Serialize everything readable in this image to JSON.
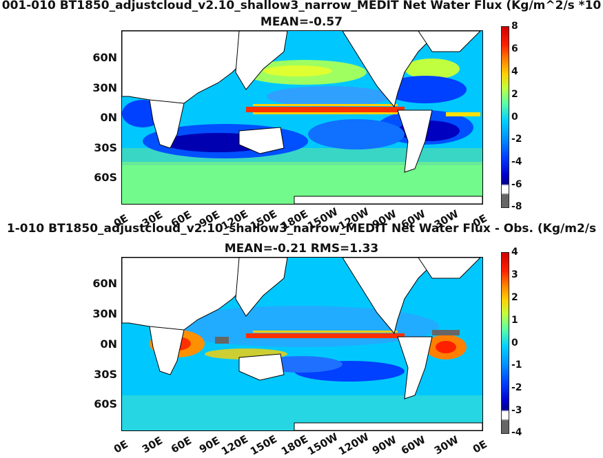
{
  "panel1": {
    "title": "001-010 BT1850_adjustcloud_v2.10_shallow3_narrow_MEDIT  Net Water Flux (Kg/m^2/s *10",
    "subtitle": "MEAN=-0.57",
    "colorbar_ticks": [
      "8",
      "6",
      "4",
      "2",
      "0",
      "-2",
      "-4",
      "-6",
      "-8"
    ]
  },
  "panel2": {
    "title": "1-010 BT1850_adjustcloud_v2.10_shallow3_narrow_MEDIT  Net Water Flux - Obs. (Kg/m2/s",
    "subtitle": "MEAN=-0.21 RMS=1.33",
    "colorbar_ticks": [
      "4",
      "3",
      "2",
      "1",
      "0",
      "-1",
      "-2",
      "-3",
      "-4"
    ]
  },
  "axes": {
    "lat_labels": [
      "60N",
      "30N",
      "0N",
      "30S",
      "60S"
    ],
    "lon_labels": [
      "0E",
      "30E",
      "60E",
      "90E",
      "120E",
      "150E",
      "180E",
      "150W",
      "120W",
      "90W",
      "60W",
      "30W",
      "0E"
    ]
  },
  "colors": {
    "ocean_bg": "#00c8ff",
    "land": "#ffffff",
    "equator_band": "#ff3000",
    "subtropic_dry": "#0032ff",
    "midlat": "#7fff7f",
    "missing": "#666666"
  }
}
